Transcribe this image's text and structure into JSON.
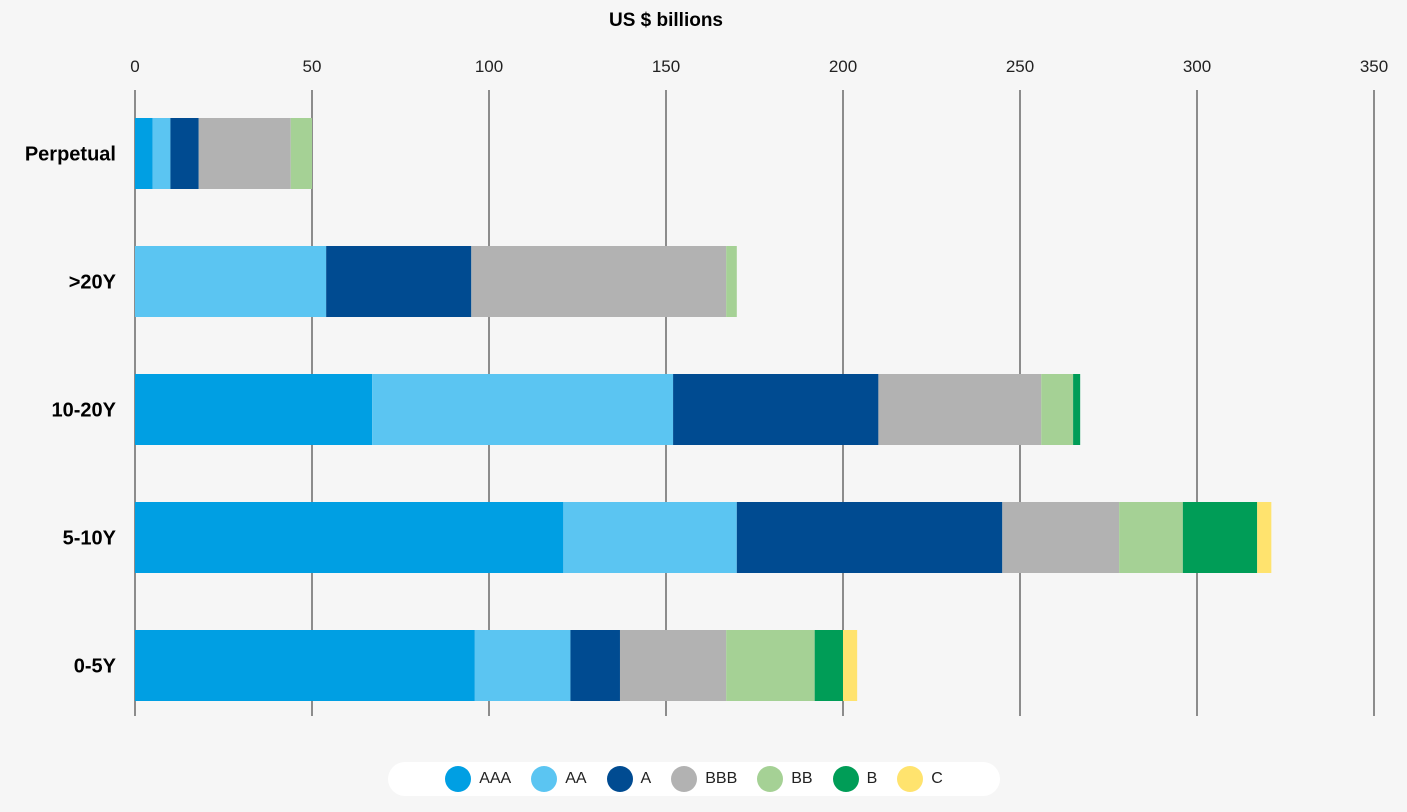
{
  "chart_data": {
    "type": "bar",
    "orientation": "horizontal",
    "stacked": true,
    "title": "",
    "xlabel": "US $ billions",
    "ylabel": "",
    "xlim": [
      0,
      350
    ],
    "xticks": [
      0,
      50,
      100,
      150,
      200,
      250,
      300,
      350
    ],
    "grid": "vertical",
    "legend": "bottom-center",
    "categories": [
      "Perpetual",
      ">20Y",
      "10-20Y",
      "5-10Y",
      "0-5Y"
    ],
    "series": [
      {
        "name": "AAA",
        "color": "#009fe3",
        "values": [
          5,
          0,
          67,
          121,
          96
        ]
      },
      {
        "name": "AA",
        "color": "#5bc5f2",
        "values": [
          5,
          54,
          85,
          49,
          27
        ]
      },
      {
        "name": "A",
        "color": "#004b91",
        "values": [
          8,
          41,
          58,
          75,
          14
        ]
      },
      {
        "name": "BBB",
        "color": "#b2b2b2",
        "values": [
          26,
          72,
          46,
          33,
          30
        ]
      },
      {
        "name": "BB",
        "color": "#a5d195",
        "values": [
          6,
          3,
          9,
          18,
          25
        ]
      },
      {
        "name": "B",
        "color": "#009d57",
        "values": [
          0,
          0,
          2,
          21,
          8
        ]
      },
      {
        "name": "C",
        "color": "#ffe36e",
        "values": [
          0,
          0,
          0,
          4,
          4
        ]
      }
    ]
  }
}
